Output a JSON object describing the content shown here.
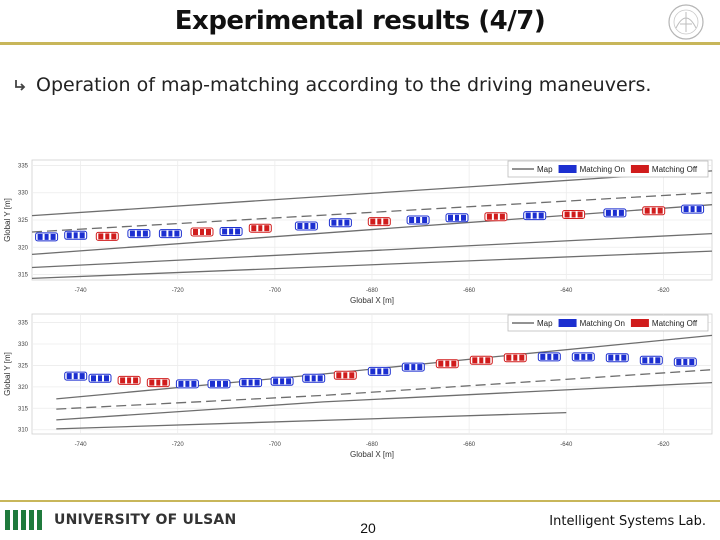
{
  "slide": {
    "title": "Experimental results (4/7)",
    "bullet": "Operation of map-matching according to the driving maneuvers.",
    "page_number": "20",
    "university": "UNIVERSITY OF ULSAN",
    "lab": "Intelligent Systems Lab."
  },
  "colors": {
    "accent_rule": "#c8b65a",
    "map_line": "#6e6e6e",
    "matching_on": "#1c2fd0",
    "matching_off": "#d01c1c",
    "logo_green": "#1f7a3c"
  },
  "chart_data": [
    {
      "type": "scatter",
      "xlabel": "Global X [m]",
      "ylabel": "Global Y [m]",
      "xlim": [
        -750,
        -610
      ],
      "ylim": [
        314,
        336
      ],
      "xticks": [
        -740,
        -720,
        -700,
        -680,
        -660,
        -640,
        -620
      ],
      "yticks": [
        315,
        320,
        325,
        330,
        335
      ],
      "grid": true,
      "legend_position": "top-right",
      "legend": [
        "Map",
        "Matching On",
        "Matching Off"
      ],
      "map_lines": [
        [
          [
            -750,
            325.8
          ],
          [
            -610,
            334.0
          ]
        ],
        [
          [
            -750,
            322.8
          ],
          [
            -610,
            330.0
          ]
        ],
        [
          [
            -750,
            318.7
          ],
          [
            -610,
            327.8
          ]
        ],
        [
          [
            -750,
            316.3
          ],
          [
            -610,
            322.5
          ]
        ],
        [
          [
            -750,
            314.3
          ],
          [
            -610,
            319.3
          ]
        ]
      ],
      "vehicles": [
        {
          "x": -747.0,
          "y": 321.9,
          "state": "on"
        },
        {
          "x": -741.0,
          "y": 322.2,
          "state": "on"
        },
        {
          "x": -734.5,
          "y": 322.0,
          "state": "off"
        },
        {
          "x": -728.0,
          "y": 322.5,
          "state": "on"
        },
        {
          "x": -721.5,
          "y": 322.5,
          "state": "on"
        },
        {
          "x": -715.0,
          "y": 322.8,
          "state": "off"
        },
        {
          "x": -709.0,
          "y": 322.9,
          "state": "on"
        },
        {
          "x": -703.0,
          "y": 323.5,
          "state": "off"
        },
        {
          "x": -693.5,
          "y": 323.9,
          "state": "on"
        },
        {
          "x": -686.5,
          "y": 324.5,
          "state": "on"
        },
        {
          "x": -678.5,
          "y": 324.7,
          "state": "off"
        },
        {
          "x": -670.5,
          "y": 325.0,
          "state": "on"
        },
        {
          "x": -662.5,
          "y": 325.4,
          "state": "on"
        },
        {
          "x": -654.5,
          "y": 325.6,
          "state": "off"
        },
        {
          "x": -646.5,
          "y": 325.8,
          "state": "on"
        },
        {
          "x": -638.5,
          "y": 326.0,
          "state": "off"
        },
        {
          "x": -630.0,
          "y": 326.3,
          "state": "on"
        },
        {
          "x": -622.0,
          "y": 326.7,
          "state": "off"
        },
        {
          "x": -614.0,
          "y": 327.0,
          "state": "on"
        }
      ]
    },
    {
      "type": "scatter",
      "xlabel": "Global X [m]",
      "ylabel": "Global Y [m]",
      "xlim": [
        -750,
        -610
      ],
      "ylim": [
        309,
        337
      ],
      "xticks": [
        -740,
        -720,
        -700,
        -680,
        -660,
        -640,
        -620
      ],
      "yticks": [
        310,
        315,
        320,
        325,
        330,
        335
      ],
      "grid": true,
      "legend_position": "top-right",
      "legend": [
        "Map",
        "Matching On",
        "Matching Off"
      ],
      "map_lines": [
        [
          [
            -745,
            317.2
          ],
          [
            -690,
            323.0
          ],
          [
            -655,
            327.0
          ],
          [
            -610,
            332.0
          ]
        ],
        [
          [
            -745,
            314.8
          ],
          [
            -690,
            318.0
          ],
          [
            -610,
            324.0
          ]
        ],
        [
          [
            -745,
            312.3
          ],
          [
            -690,
            316.5
          ],
          [
            -610,
            321.0
          ]
        ],
        [
          [
            -745,
            310.2
          ],
          [
            -640,
            314.0
          ]
        ]
      ],
      "vehicles": [
        {
          "x": -741.0,
          "y": 322.5,
          "state": "on"
        },
        {
          "x": -736.0,
          "y": 322.0,
          "state": "on"
        },
        {
          "x": -730.0,
          "y": 321.5,
          "state": "off"
        },
        {
          "x": -724.0,
          "y": 321.0,
          "state": "off"
        },
        {
          "x": -718.0,
          "y": 320.7,
          "state": "on"
        },
        {
          "x": -711.5,
          "y": 320.7,
          "state": "on"
        },
        {
          "x": -705.0,
          "y": 321.0,
          "state": "on"
        },
        {
          "x": -698.5,
          "y": 321.3,
          "state": "on"
        },
        {
          "x": -692.0,
          "y": 322.0,
          "state": "on"
        },
        {
          "x": -685.5,
          "y": 322.7,
          "state": "off"
        },
        {
          "x": -678.5,
          "y": 323.6,
          "state": "on"
        },
        {
          "x": -671.5,
          "y": 324.6,
          "state": "on"
        },
        {
          "x": -664.5,
          "y": 325.4,
          "state": "off"
        },
        {
          "x": -657.5,
          "y": 326.2,
          "state": "off"
        },
        {
          "x": -650.5,
          "y": 326.8,
          "state": "off"
        },
        {
          "x": -643.5,
          "y": 327.0,
          "state": "on"
        },
        {
          "x": -636.5,
          "y": 327.0,
          "state": "on"
        },
        {
          "x": -629.5,
          "y": 326.8,
          "state": "on"
        },
        {
          "x": -622.5,
          "y": 326.2,
          "state": "on"
        },
        {
          "x": -615.5,
          "y": 325.8,
          "state": "on"
        }
      ]
    }
  ]
}
